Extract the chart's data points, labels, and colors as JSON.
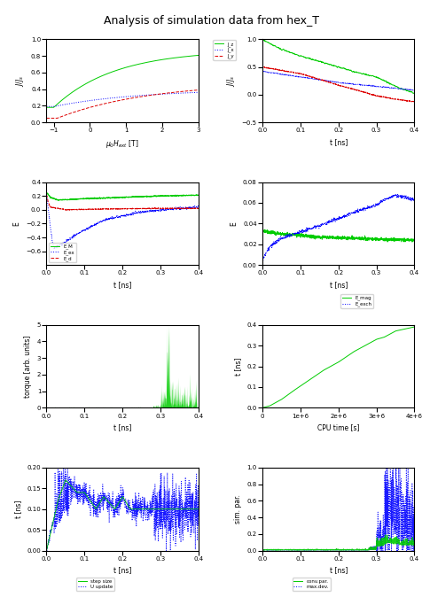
{
  "title": "Analysis of simulation data from hex_T",
  "title_fontsize": 9,
  "colors": {
    "green": "#00cc00",
    "blue": "#0000ff",
    "red": "#dd0000"
  },
  "legend1_labels": [
    "J_z",
    "J_x",
    "J_y"
  ],
  "legend2_labels": [
    "E_M",
    "E_ex",
    "E_d"
  ],
  "legend3_labels": [
    "E_mag",
    "E_exch"
  ],
  "legend4_labels": [
    "step size",
    "U update"
  ],
  "legend5_labels": [
    "conv.par.",
    "max.dev."
  ]
}
